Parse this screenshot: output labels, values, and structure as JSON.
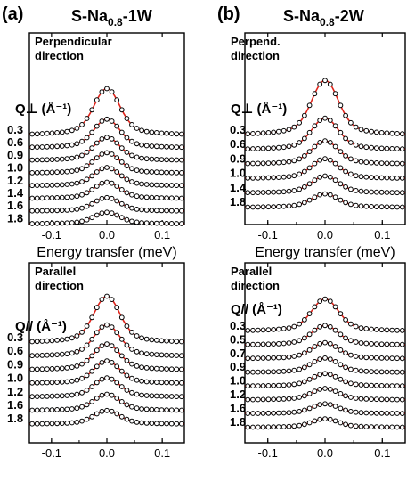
{
  "figure": {
    "left_label": "(a)",
    "left_title": "S-Na0.8-1W",
    "left_title_parts": {
      "base": "S-Na",
      "sub": "0.8",
      "tail": "-1W"
    },
    "right_label": "(b)",
    "right_title": "S-Na0.8-2W",
    "right_title_parts": {
      "base": "S-Na",
      "sub": "0.8",
      "tail": "-2W"
    }
  },
  "colors": {
    "fit_line": "#e0261d",
    "data_marker": "#000000",
    "axis": "#000000"
  },
  "chart_data": [
    {
      "id": "a-perp",
      "type": "line",
      "direction_lines": [
        "Perpendicular",
        "direction"
      ],
      "q_label": "Q⊥ (Å⁻¹)",
      "xlabel": "Energy transfer (meV)",
      "xlim": [
        -0.14,
        0.14
      ],
      "xticks": [
        -0.1,
        0.0,
        0.1
      ],
      "xtick_labels": [
        "-0.1",
        "0.0",
        "0.1"
      ],
      "series_order": "top to bottom",
      "series": [
        {
          "name": "0.3",
          "baseline": 1.0,
          "amp": 6.8,
          "width": 0.022
        },
        {
          "name": "0.6",
          "baseline": 1.0,
          "amp": 4.2,
          "width": 0.022
        },
        {
          "name": "0.9",
          "baseline": 1.0,
          "amp": 3.4,
          "width": 0.022
        },
        {
          "name": "1.0",
          "baseline": 1.0,
          "amp": 3.0,
          "width": 0.022
        },
        {
          "name": "1.2",
          "baseline": 1.0,
          "amp": 2.7,
          "width": 0.022
        },
        {
          "name": "1.4",
          "baseline": 1.0,
          "amp": 2.4,
          "width": 0.022
        },
        {
          "name": "1.6",
          "baseline": 1.0,
          "amp": 2.0,
          "width": 0.022
        },
        {
          "name": "1.8",
          "baseline": 1.0,
          "amp": 1.7,
          "width": 0.022
        }
      ]
    },
    {
      "id": "b-perp",
      "type": "line",
      "direction_lines": [
        "Perpend.",
        "direction"
      ],
      "q_label": "Q⊥ (Å⁻¹)",
      "xlabel": "Energy transfer (meV)",
      "xlim": [
        -0.14,
        0.14
      ],
      "xticks": [
        -0.1,
        0.0,
        0.1
      ],
      "xtick_labels": [
        "-0.1",
        "0.0",
        "0.1"
      ],
      "series_order": "top to bottom",
      "series": [
        {
          "name": "0.3",
          "baseline": 1.0,
          "amp": 8.0,
          "width": 0.022
        },
        {
          "name": "0.6",
          "baseline": 1.0,
          "amp": 4.6,
          "width": 0.022
        },
        {
          "name": "0.9",
          "baseline": 1.0,
          "amp": 3.4,
          "width": 0.022
        },
        {
          "name": "1.0",
          "baseline": 1.0,
          "amp": 2.9,
          "width": 0.022
        },
        {
          "name": "1.4",
          "baseline": 1.0,
          "amp": 2.5,
          "width": 0.022
        },
        {
          "name": "1.8",
          "baseline": 1.0,
          "amp": 2.0,
          "width": 0.022
        }
      ]
    },
    {
      "id": "a-par",
      "type": "line",
      "direction_lines": [
        "Parallel",
        "direction"
      ],
      "q_label": "Q// (Å⁻¹)",
      "xlabel": "",
      "xlim": [
        -0.14,
        0.14
      ],
      "xticks": [
        -0.1,
        0.0,
        0.1
      ],
      "xtick_labels": [
        "-0.1",
        "0.0",
        "0.1"
      ],
      "series_order": "top to bottom",
      "series": [
        {
          "name": "0.3",
          "baseline": 1.0,
          "amp": 6.8,
          "width": 0.022
        },
        {
          "name": "0.6",
          "baseline": 1.0,
          "amp": 4.6,
          "width": 0.022
        },
        {
          "name": "0.9",
          "baseline": 1.0,
          "amp": 3.8,
          "width": 0.022
        },
        {
          "name": "1.0",
          "baseline": 1.0,
          "amp": 3.3,
          "width": 0.022
        },
        {
          "name": "1.2",
          "baseline": 1.0,
          "amp": 2.8,
          "width": 0.022
        },
        {
          "name": "1.6",
          "baseline": 1.0,
          "amp": 2.4,
          "width": 0.022
        },
        {
          "name": "1.8",
          "baseline": 1.0,
          "amp": 2.0,
          "width": 0.022
        }
      ]
    },
    {
      "id": "b-par",
      "type": "line",
      "direction_lines": [
        "Parallel",
        "direction"
      ],
      "q_label": "Q// (Å⁻¹)",
      "xlabel": "",
      "xlim": [
        -0.14,
        0.14
      ],
      "xticks": [
        -0.1,
        0.0,
        0.1
      ],
      "xtick_labels": [
        "-0.1",
        "0.0",
        "0.1"
      ],
      "series_order": "top to bottom",
      "series": [
        {
          "name": "0.3",
          "baseline": 1.0,
          "amp": 5.6,
          "width": 0.022
        },
        {
          "name": "0.5",
          "baseline": 1.0,
          "amp": 3.4,
          "width": 0.022
        },
        {
          "name": "0.7",
          "baseline": 1.0,
          "amp": 2.8,
          "width": 0.022
        },
        {
          "name": "0.9",
          "baseline": 1.0,
          "amp": 2.5,
          "width": 0.022
        },
        {
          "name": "1.0",
          "baseline": 1.0,
          "amp": 2.2,
          "width": 0.022
        },
        {
          "name": "1.2",
          "baseline": 1.0,
          "amp": 2.0,
          "width": 0.022
        },
        {
          "name": "1.6",
          "baseline": 1.0,
          "amp": 1.7,
          "width": 0.022
        },
        {
          "name": "1.8",
          "baseline": 1.0,
          "amp": 1.5,
          "width": 0.022
        }
      ]
    }
  ]
}
